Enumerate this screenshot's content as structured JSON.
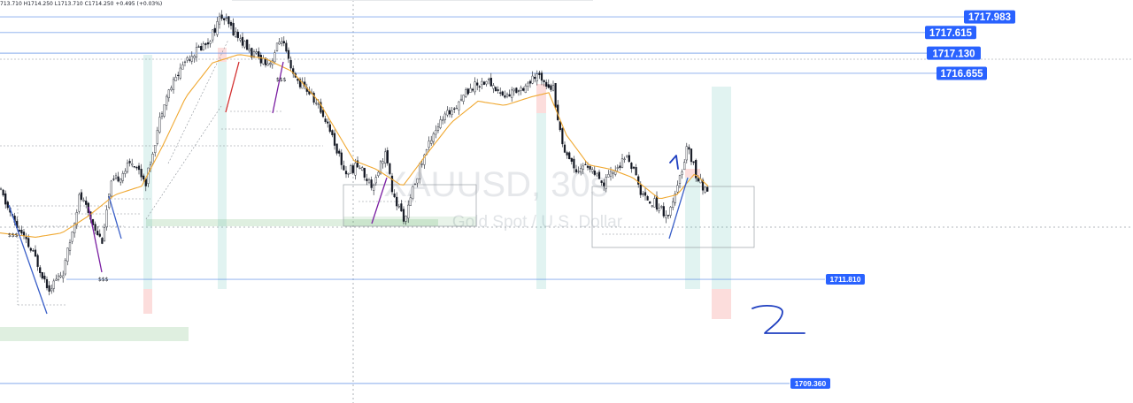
{
  "header": {
    "ohlc": "713.710 H1714.250 L1713.710 C1714.250 +0.495 (+0.03%)"
  },
  "watermark": {
    "symbol": "XAUUSD, 30s",
    "description": "Gold Spot / U.S. Dollar"
  },
  "colors": {
    "up": "#131722",
    "down": "#131722",
    "ma": "#f0a830",
    "level_line": "#5b8ee6",
    "label_bg": "#2962ff",
    "green_zone": "#43a047",
    "teal_zone": "#4db6ac",
    "red_zone": "#ef5350",
    "annotation": "#1f3fc0"
  },
  "chart_data": {
    "type": "candlestick",
    "xlabel": "",
    "ylabel": "",
    "ylim": [
      1708.9,
      1718.38
    ],
    "price_levels": [
      1717.983,
      1717.615,
      1717.13,
      1716.655,
      1711.81,
      1709.36
    ],
    "level_labels": [
      "1717.983",
      "1717.615",
      "1717.130",
      "1716.655",
      "1711.810",
      "1709.360"
    ],
    "annotations": [
      "$$$",
      "$$$",
      "$$$",
      "1",
      "2"
    ],
    "path_keypoints": [
      [
        0,
        1713.9
      ],
      [
        15,
        1713.2
      ],
      [
        40,
        1712.3
      ],
      [
        55,
        1711.6
      ],
      [
        72,
        1712.0
      ],
      [
        90,
        1713.8
      ],
      [
        115,
        1712.7
      ],
      [
        125,
        1714.0
      ],
      [
        150,
        1714.6
      ],
      [
        165,
        1714.1
      ],
      [
        185,
        1716.0
      ],
      [
        210,
        1717.0
      ],
      [
        235,
        1717.4
      ],
      [
        250,
        1718.0
      ],
      [
        262,
        1717.7
      ],
      [
        285,
        1717.1
      ],
      [
        305,
        1716.9
      ],
      [
        318,
        1717.5
      ],
      [
        330,
        1716.6
      ],
      [
        350,
        1716.2
      ],
      [
        370,
        1715.5
      ],
      [
        390,
        1714.3
      ],
      [
        405,
        1714.5
      ],
      [
        420,
        1714.0
      ],
      [
        435,
        1714.8
      ],
      [
        445,
        1713.7
      ],
      [
        458,
        1713.2
      ],
      [
        470,
        1714.2
      ],
      [
        490,
        1715.3
      ],
      [
        510,
        1715.8
      ],
      [
        530,
        1716.3
      ],
      [
        550,
        1716.5
      ],
      [
        570,
        1716.1
      ],
      [
        595,
        1716.4
      ],
      [
        610,
        1716.6
      ],
      [
        625,
        1716.3
      ],
      [
        635,
        1715.0
      ],
      [
        650,
        1714.4
      ],
      [
        665,
        1714.5
      ],
      [
        680,
        1714.0
      ],
      [
        695,
        1714.4
      ],
      [
        710,
        1714.7
      ],
      [
        725,
        1713.8
      ],
      [
        740,
        1713.6
      ],
      [
        755,
        1713.3
      ],
      [
        765,
        1713.9
      ],
      [
        777,
        1715.0
      ],
      [
        787,
        1714.2
      ],
      [
        800,
        1713.8
      ]
    ],
    "ma_keypoints": [
      [
        0,
        1712.9
      ],
      [
        40,
        1712.8
      ],
      [
        70,
        1712.9
      ],
      [
        100,
        1713.3
      ],
      [
        130,
        1713.8
      ],
      [
        160,
        1714.0
      ],
      [
        185,
        1715.0
      ],
      [
        210,
        1716.1
      ],
      [
        240,
        1716.9
      ],
      [
        270,
        1717.1
      ],
      [
        300,
        1717.0
      ],
      [
        330,
        1716.7
      ],
      [
        360,
        1716.0
      ],
      [
        380,
        1715.3
      ],
      [
        400,
        1714.6
      ],
      [
        425,
        1714.4
      ],
      [
        455,
        1714.0
      ],
      [
        480,
        1714.7
      ],
      [
        510,
        1715.5
      ],
      [
        540,
        1716.0
      ],
      [
        570,
        1715.9
      ],
      [
        600,
        1716.1
      ],
      [
        620,
        1716.2
      ],
      [
        640,
        1715.2
      ],
      [
        665,
        1714.5
      ],
      [
        690,
        1714.4
      ],
      [
        715,
        1714.2
      ],
      [
        745,
        1713.7
      ],
      [
        765,
        1713.8
      ],
      [
        785,
        1714.3
      ],
      [
        800,
        1714.0
      ]
    ]
  }
}
